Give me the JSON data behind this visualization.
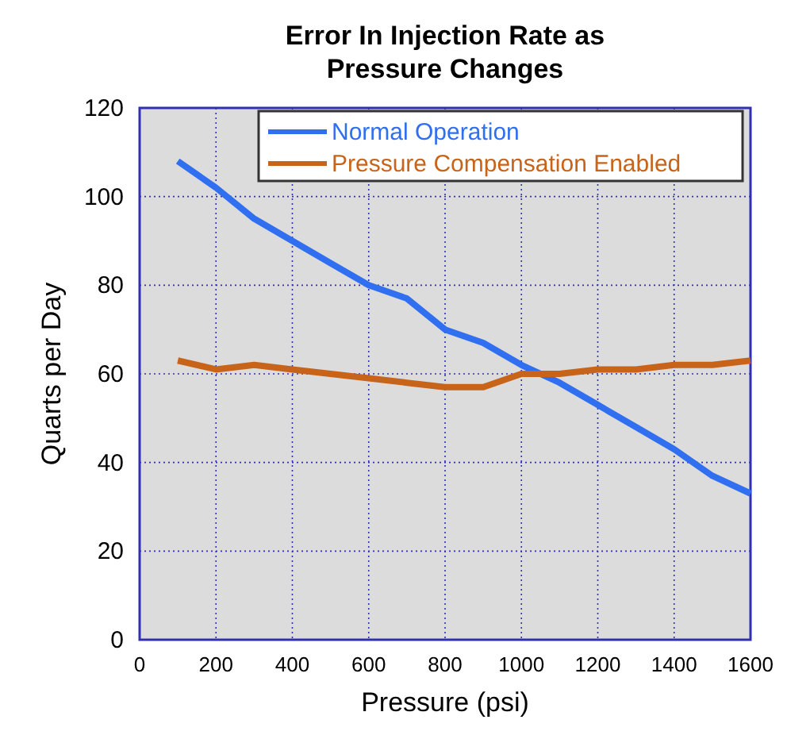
{
  "chart_data": {
    "type": "line",
    "title": "Error In Injection Rate as Pressure Changes",
    "xlabel": "Pressure (psi)",
    "ylabel": "Quarts per Day",
    "x": [
      100,
      200,
      300,
      400,
      500,
      600,
      700,
      800,
      900,
      1000,
      1100,
      1200,
      1300,
      1400,
      1500,
      1600
    ],
    "series": [
      {
        "name": "Normal Operation",
        "color": "#2f6ff0",
        "values": [
          108,
          102,
          95,
          90,
          85,
          80,
          77,
          70,
          67,
          62,
          58,
          53,
          48,
          43,
          37,
          33
        ]
      },
      {
        "name": "Pressure Compensation Enabled",
        "color": "#c8641a",
        "values": [
          63,
          61,
          62,
          61,
          60,
          59,
          58,
          57,
          57,
          60,
          60,
          61,
          61,
          62,
          62,
          63
        ]
      }
    ],
    "xlim": [
      0,
      1600
    ],
    "xticks": [
      0,
      200,
      400,
      600,
      800,
      1000,
      1200,
      1400,
      1600
    ],
    "ylim": [
      0,
      120
    ],
    "yticks": [
      0,
      20,
      40,
      60,
      80,
      100,
      120
    ],
    "grid": true,
    "legend": "top right",
    "line_style": "solid",
    "marker": "none"
  }
}
